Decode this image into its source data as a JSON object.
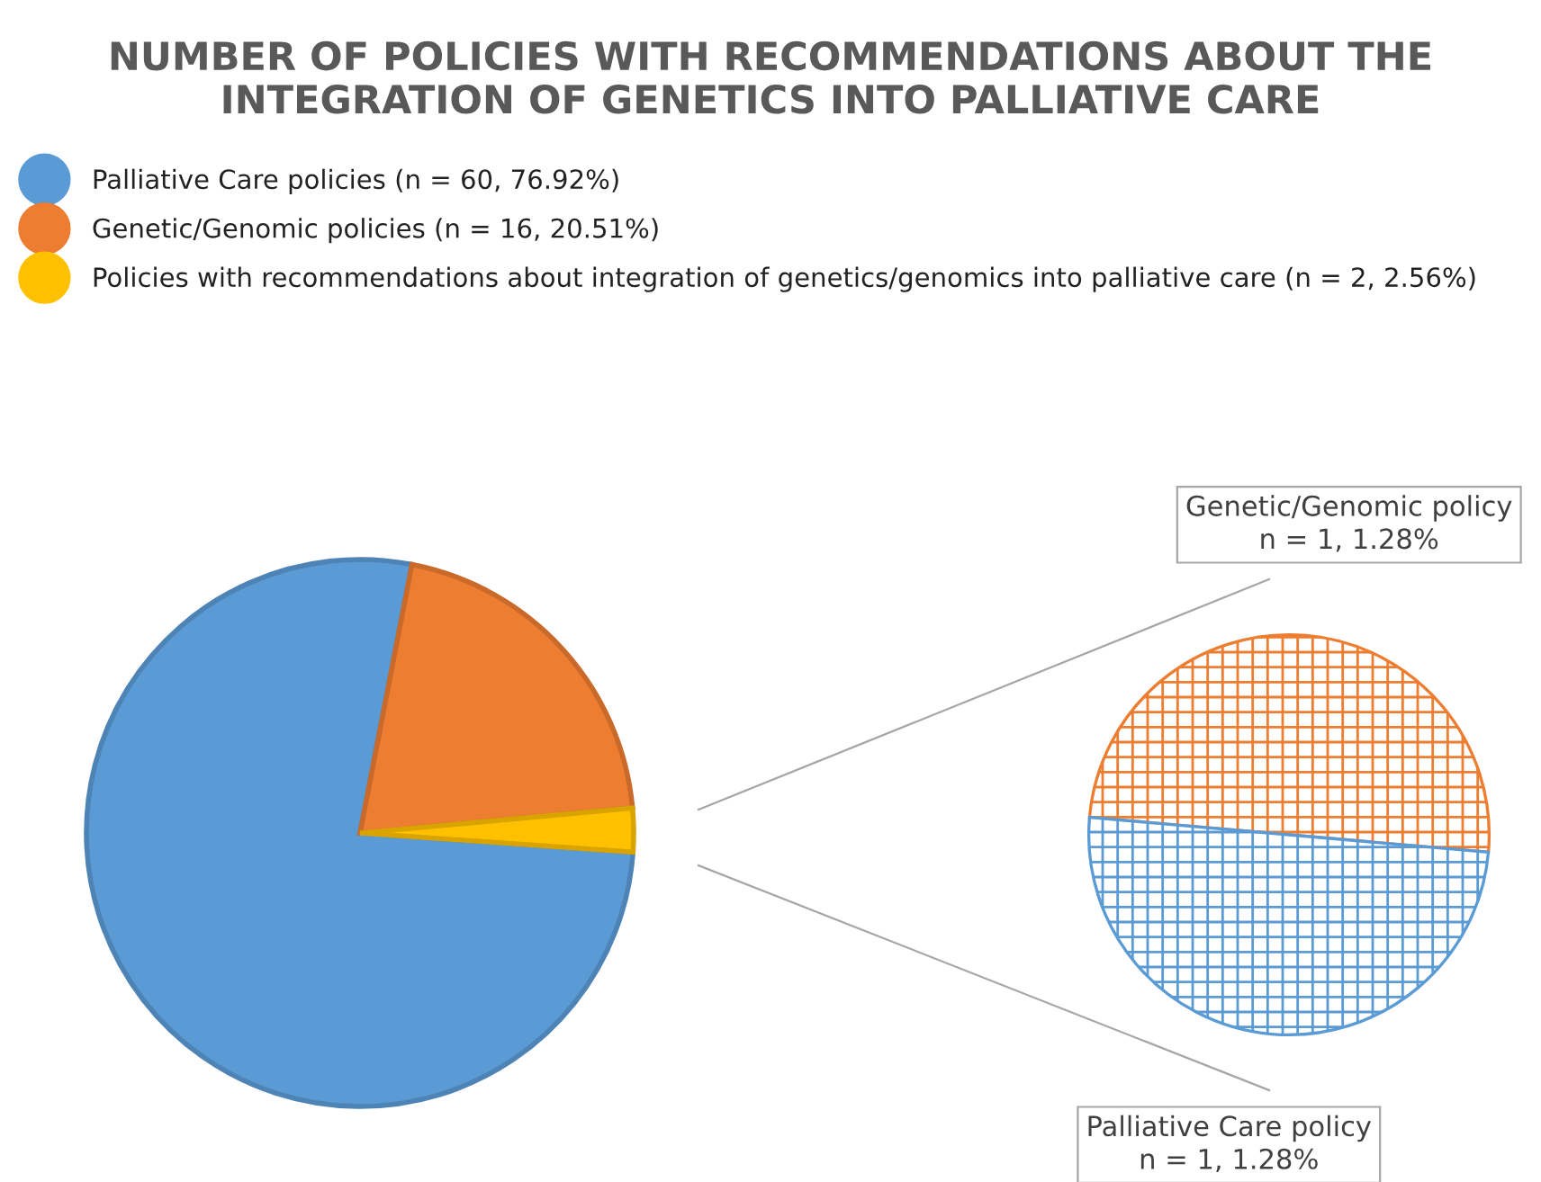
{
  "chart_data": [
    {
      "type": "pie",
      "title": "NUMBER OF POLICIES WITH RECOMMENDATIONS ABOUT THE INTEGRATION OF GENETICS INTO PALLIATIVE CARE",
      "categories": [
        "Palliative Care policies (n = 60, 76.92%)",
        "Genetic/Genomic policies (n = 16, 20.51%)",
        "Policies with recommendations about integration of genetics/genomics into palliative care (n = 2, 2.56%)"
      ],
      "values": [
        76.92,
        20.51,
        2.56
      ],
      "colors": [
        "#5b9bd5",
        "#ed7d31",
        "#ffc000"
      ],
      "legend": "top"
    },
    {
      "type": "pie",
      "categories": [
        "Genetic/Genomic policy",
        "Palliative Care policy"
      ],
      "values": [
        1.28,
        1.28
      ],
      "value_labels": [
        "n = 1, 1.28%",
        "n = 1, 1.28%"
      ],
      "colors": [
        "#ed7d31",
        "#5b9bd5"
      ],
      "legend": false
    }
  ]
}
